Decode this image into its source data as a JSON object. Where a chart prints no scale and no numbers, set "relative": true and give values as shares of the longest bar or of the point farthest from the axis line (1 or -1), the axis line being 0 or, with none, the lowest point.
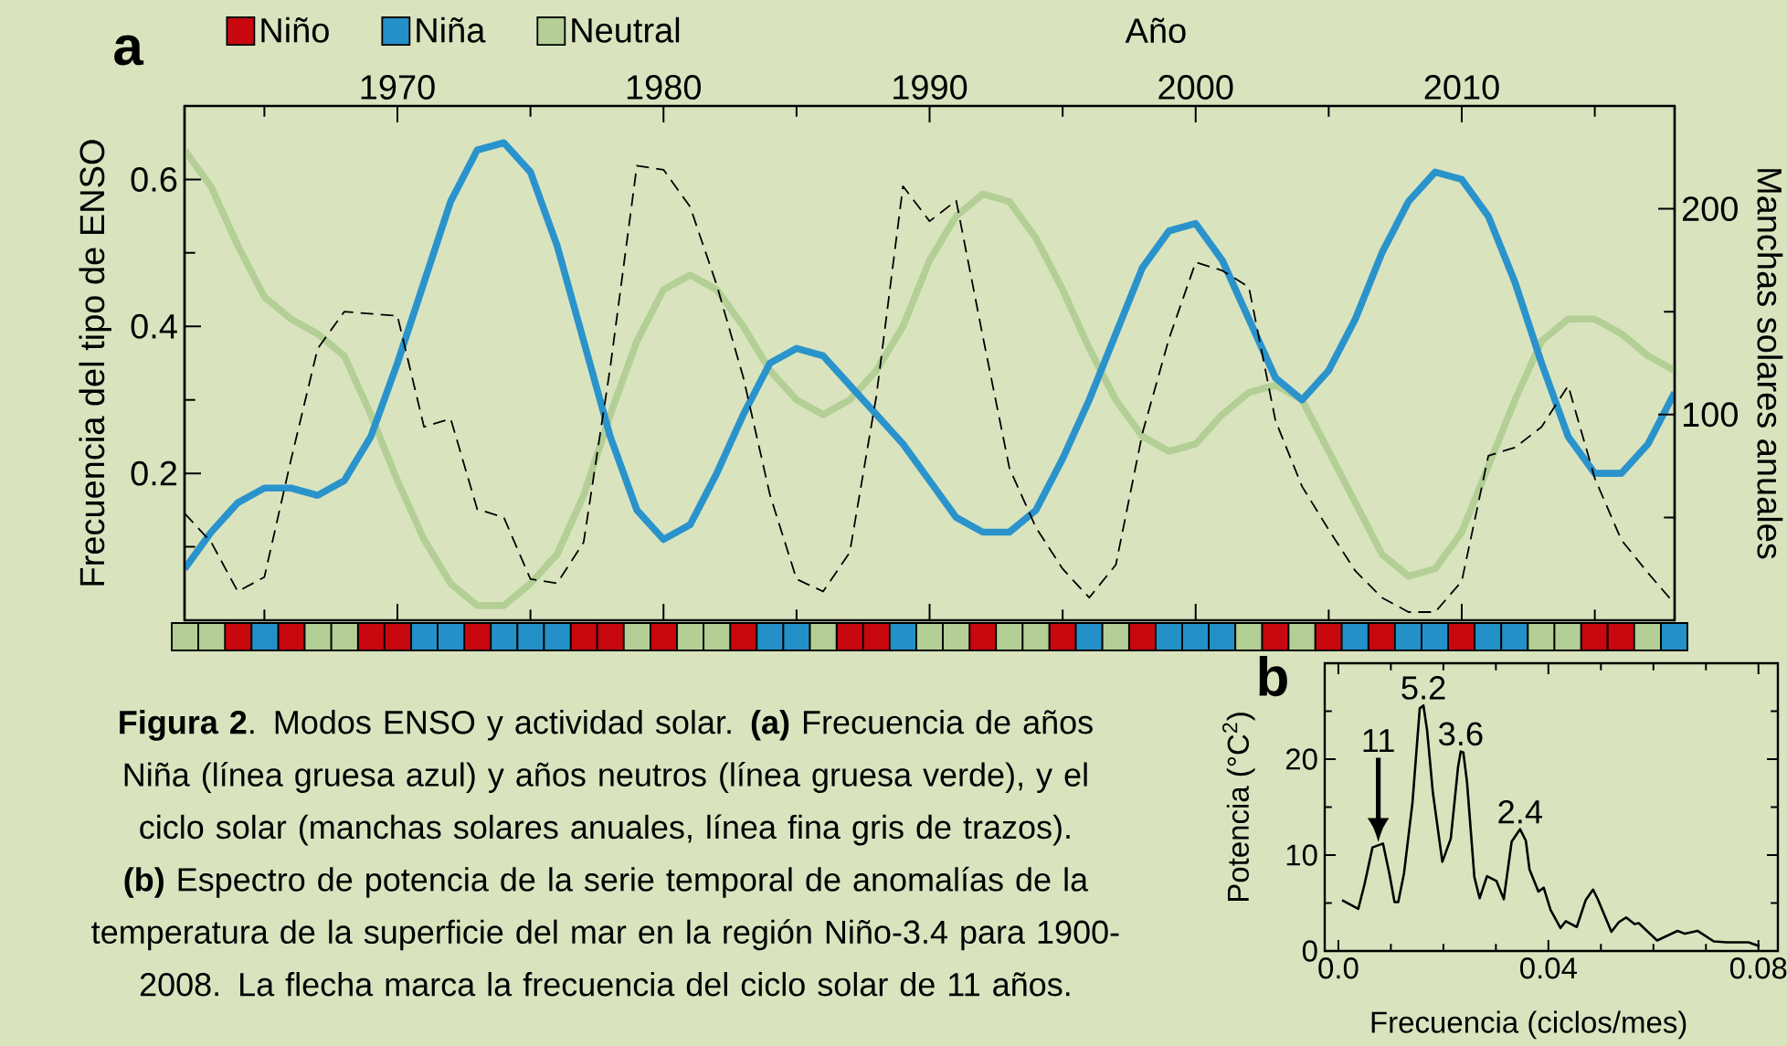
{
  "chart_data": [
    {
      "type": "line",
      "title": "a",
      "xlabel": "Año",
      "ylabel": "Frecuencia del tipo de ENSO",
      "y2label": "Manchas solares anuales",
      "xlim": [
        1962,
        2018
      ],
      "xticks": [
        {
          "value": 1965,
          "label": null
        },
        1970,
        {
          "value": 1975,
          "label": null
        },
        1980,
        {
          "value": 1985,
          "label": null
        },
        1990,
        {
          "value": 1995,
          "label": null
        },
        2000,
        {
          "value": 2005,
          "label": null
        },
        2010,
        {
          "value": 2015,
          "label": null
        }
      ],
      "ylim": [
        0,
        0.7
      ],
      "yticks": [
        {
          "value": 0.1,
          "label": null
        },
        0.2,
        {
          "value": 0.3,
          "label": null
        },
        0.4,
        {
          "value": 0.5,
          "label": null
        },
        0.6
      ],
      "y2lim": [
        0,
        250
      ],
      "y2ticks": [
        {
          "value": 50,
          "label": null
        },
        100,
        {
          "value": 150,
          "label": null
        },
        200
      ],
      "x": [
        1962,
        1963,
        1964,
        1965,
        1966,
        1967,
        1968,
        1969,
        1970,
        1971,
        1972,
        1973,
        1974,
        1975,
        1976,
        1977,
        1978,
        1979,
        1980,
        1981,
        1982,
        1983,
        1984,
        1985,
        1986,
        1987,
        1988,
        1989,
        1990,
        1991,
        1992,
        1993,
        1994,
        1995,
        1996,
        1997,
        1998,
        1999,
        2000,
        2001,
        2002,
        2003,
        2004,
        2005,
        2006,
        2007,
        2008,
        2009,
        2010,
        2011,
        2012,
        2013,
        2014,
        2015,
        2016,
        2017,
        2018
      ],
      "series": [
        {
          "color": "#b3cf95",
          "values": [
            0.64,
            0.59,
            0.51,
            0.44,
            0.41,
            0.39,
            0.36,
            0.28,
            0.19,
            0.11,
            0.05,
            0.02,
            0.02,
            0.05,
            0.09,
            0.17,
            0.28,
            0.38,
            0.45,
            0.47,
            0.45,
            0.4,
            0.34,
            0.3,
            0.28,
            0.3,
            0.34,
            0.4,
            0.49,
            0.55,
            0.58,
            0.57,
            0.52,
            0.45,
            0.37,
            0.3,
            0.25,
            0.23,
            0.24,
            0.28,
            0.31,
            0.32,
            0.3,
            0.23,
            0.16,
            0.09,
            0.06,
            0.07,
            0.12,
            0.21,
            0.3,
            0.38,
            0.41,
            0.41,
            0.39,
            0.36,
            0.34
          ]
        },
        {
          "color": "#2a93cc",
          "values": [
            0.07,
            0.12,
            0.16,
            0.18,
            0.18,
            0.17,
            0.19,
            0.25,
            0.35,
            0.46,
            0.57,
            0.64,
            0.65,
            0.61,
            0.51,
            0.38,
            0.25,
            0.15,
            0.11,
            0.13,
            0.2,
            0.28,
            0.35,
            0.37,
            0.36,
            0.32,
            0.28,
            0.24,
            0.19,
            0.14,
            0.12,
            0.12,
            0.15,
            0.22,
            0.3,
            0.39,
            0.48,
            0.53,
            0.54,
            0.49,
            0.41,
            0.33,
            0.3,
            0.34,
            0.41,
            0.5,
            0.57,
            0.61,
            0.6,
            0.55,
            0.46,
            0.35,
            0.25,
            0.2,
            0.2,
            0.24,
            0.31
          ]
        },
        {
          "color": "#000000",
          "axis": "y2",
          "line_style": "dashed",
          "values": [
            52,
            38,
            14,
            21,
            78,
            132,
            150,
            149,
            148,
            94,
            98,
            54,
            50,
            20,
            18,
            38,
            123,
            221,
            219,
            201,
            163,
            118,
            61,
            20,
            14,
            33,
            109,
            211,
            194,
            204,
            138,
            74,
            45,
            25,
            11,
            27,
            91,
            137,
            174,
            170,
            162,
            97,
            65,
            44,
            24,
            11,
            4,
            4,
            19,
            80,
            84,
            94,
            114,
            69,
            39,
            23,
            8
          ]
        }
      ],
      "annotations": [
        "**Figura 2**. Modos ENSO y actividad solar. **(a)** Frecuencia de años Niña (línea gruesa azul) y años neutros (línea gruesa verde), y el ciclo solar (manchas solares anuales, línea fina gris de trazos). **(b)** Espectro de potencia de la serie temporal de anomalías de la temperatura de la superficie del mar en la región Niño-3.4 para 1900-2008. La flecha marca la frecuencia del ciclo solar de 11 años."
      ]
    },
    {
      "type": "bar",
      "stacked": true,
      "relative": true,
      "legend": "top left",
      "categories": [
        null,
        null,
        null,
        null,
        null,
        null,
        null,
        null,
        null,
        null,
        null,
        null,
        null,
        null,
        null,
        null,
        null,
        null,
        null,
        null,
        null,
        null,
        null,
        null,
        null,
        null,
        null,
        null,
        null,
        null,
        null,
        null,
        null,
        null,
        null,
        null,
        null,
        null,
        null,
        null,
        null,
        null,
        null,
        null,
        null,
        null,
        null,
        null,
        null,
        null,
        null,
        null,
        null,
        null,
        null,
        null,
        null
      ],
      "series": [
        {
          "name": "Niño",
          "color": "#c8070f",
          "values": [
            null,
            null,
            1,
            null,
            1,
            null,
            null,
            1,
            1,
            null,
            null,
            1,
            null,
            null,
            null,
            1,
            1,
            null,
            1,
            null,
            null,
            1,
            null,
            null,
            null,
            1,
            1,
            null,
            null,
            null,
            1,
            null,
            null,
            1,
            null,
            null,
            1,
            null,
            null,
            null,
            null,
            1,
            null,
            1,
            null,
            1,
            null,
            null,
            1,
            null,
            null,
            null,
            null,
            1,
            1,
            null,
            null
          ]
        },
        {
          "name": "Niña",
          "color": "#2390c8",
          "values": [
            null,
            null,
            null,
            1,
            null,
            null,
            null,
            null,
            null,
            1,
            1,
            null,
            1,
            1,
            1,
            null,
            null,
            null,
            null,
            null,
            null,
            null,
            1,
            1,
            null,
            null,
            null,
            1,
            null,
            null,
            null,
            null,
            null,
            null,
            1,
            null,
            null,
            1,
            1,
            1,
            null,
            null,
            null,
            null,
            1,
            null,
            1,
            1,
            null,
            1,
            1,
            null,
            null,
            null,
            null,
            null,
            1
          ]
        },
        {
          "name": "Neutral",
          "color": "#b3cf95",
          "values": [
            1,
            1,
            null,
            null,
            null,
            1,
            1,
            null,
            null,
            null,
            null,
            null,
            null,
            null,
            null,
            null,
            null,
            1,
            null,
            1,
            1,
            null,
            null,
            null,
            1,
            null,
            null,
            null,
            1,
            1,
            null,
            1,
            1,
            null,
            null,
            1,
            null,
            null,
            null,
            null,
            1,
            null,
            1,
            null,
            null,
            null,
            null,
            null,
            null,
            null,
            null,
            1,
            1,
            null,
            null,
            1,
            null
          ]
        }
      ]
    },
    {
      "type": "line",
      "title": "b",
      "xlabel": "Frecuencia (ciclos/mes)",
      "ylabel": "Potencia (°C$^{2}$)",
      "xlim": [
        -0.0026,
        0.0837
      ],
      "xticks": [
        {
          "value": 0,
          "label": "0.0"
        },
        {
          "value": 0.01,
          "label": null
        },
        {
          "value": 0.02,
          "label": null
        },
        {
          "value": 0.03,
          "label": null
        },
        0.04,
        {
          "value": 0.05,
          "label": null
        },
        {
          "value": 0.06,
          "label": null
        },
        {
          "value": 0.07,
          "label": null
        },
        0.08
      ],
      "ylim": [
        0,
        30
      ],
      "yticks": [
        0,
        {
          "value": 5,
          "label": null
        },
        10,
        {
          "value": 15,
          "label": null
        },
        20,
        {
          "value": 25,
          "label": null
        }
      ],
      "x": [
        0.0007,
        0.0038,
        0.005,
        0.0065,
        0.0085,
        0.0097,
        0.0107,
        0.0114,
        0.0125,
        0.0141,
        0.0155,
        0.0162,
        0.0169,
        0.018,
        0.0198,
        0.0214,
        0.0228,
        0.0233,
        0.0238,
        0.0245,
        0.0259,
        0.0269,
        0.0283,
        0.0301,
        0.0315,
        0.033,
        0.0346,
        0.0357,
        0.0364,
        0.0381,
        0.0391,
        0.0404,
        0.0423,
        0.0433,
        0.0454,
        0.0471,
        0.0485,
        0.0494,
        0.052,
        0.0534,
        0.0548,
        0.0564,
        0.0572,
        0.0607,
        0.0646,
        0.066,
        0.0684,
        0.0715,
        0.074,
        0.0781,
        0.0802
      ],
      "series": [
        {
          "color": "#000000",
          "values": [
            5.3,
            4.4,
            7.0,
            10.8,
            11.2,
            8.1,
            5.1,
            5.1,
            8.1,
            15.4,
            25.3,
            25.6,
            23.0,
            16.5,
            9.3,
            11.7,
            19.2,
            20.8,
            20.7,
            17.6,
            7.7,
            5.5,
            7.8,
            7.3,
            5.4,
            11.4,
            12.7,
            11.5,
            8.5,
            6.2,
            6.6,
            4.3,
            2.4,
            3.1,
            2.5,
            5.3,
            6.4,
            5.4,
            2.0,
            3.0,
            3.5,
            2.8,
            2.9,
            1.1,
            2.1,
            1.8,
            2.1,
            1.0,
            0.9,
            0.9,
            0.5
          ]
        }
      ],
      "annotations": [
        {
          "text": "11",
          "x": 0.0076,
          "y": 11.0
        },
        {
          "text": "5.2",
          "x": 0.0162,
          "y": 25.6
        },
        {
          "text": "3.6",
          "x": 0.0233,
          "y": 20.8
        },
        {
          "text": "2.4",
          "x": 0.0346,
          "y": 12.7
        }
      ]
    }
  ]
}
